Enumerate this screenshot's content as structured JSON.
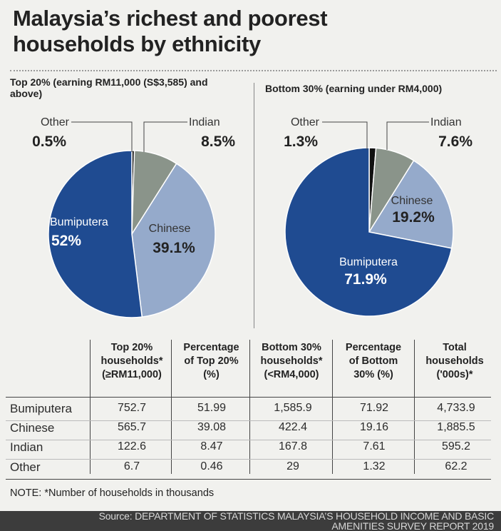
{
  "title": "Malaysia’s richest and poorest households by ethnicity",
  "colors": {
    "bumiputera": "#1f4b91",
    "chinese": "#95aacb",
    "indian": "#8a948a",
    "other": "#111111",
    "outline": "#ffffff"
  },
  "chart_data": [
    {
      "type": "pie",
      "title": "Top 20% (earning RM11,000 (S$3,585) and above)",
      "categories": [
        "Bumiputera",
        "Chinese",
        "Indian",
        "Other"
      ],
      "values": [
        52,
        39.1,
        8.5,
        0.5
      ],
      "labels": [
        "52%",
        "39.1%",
        "8.5%",
        "0.5%"
      ]
    },
    {
      "type": "pie",
      "title": "Bottom 30% (earning under RM4,000)",
      "categories": [
        "Bumiputera",
        "Chinese",
        "Indian",
        "Other"
      ],
      "values": [
        71.9,
        19.2,
        7.6,
        1.3
      ],
      "labels": [
        "71.9%",
        "19.2%",
        "7.6%",
        "1.3%"
      ]
    },
    {
      "type": "table",
      "headers": [
        "",
        "Top 20% households* (≥RM11,000)",
        "Percentage of Top 20% (%)",
        "Bottom 30% households* (<RM4,000)",
        "Percentage of Bottom 30% (%)",
        "Total households ('000s)*"
      ],
      "rows": [
        [
          "Bumiputera",
          "752.7",
          "51.99",
          "1,585.9",
          "71.92",
          "4,733.9"
        ],
        [
          "Chinese",
          "565.7",
          "39.08",
          "422.4",
          "19.16",
          "1,885.5"
        ],
        [
          "Indian",
          "122.6",
          "8.47",
          "167.8",
          "7.61",
          "595.2"
        ],
        [
          "Other",
          "6.7",
          "0.46",
          "29",
          "1.32",
          "62.2"
        ]
      ]
    }
  ],
  "table_header": {
    "c1": [
      "Top 20%",
      "households*",
      "(≥RM11,000)"
    ],
    "c2": [
      "Percentage",
      "of Top 20%",
      "(%)"
    ],
    "c3": [
      "Bottom 30%",
      "households*",
      "(<RM4,000)"
    ],
    "c4": [
      "Percentage",
      "of Bottom",
      "30% (%)"
    ],
    "c5": [
      "Total",
      "households",
      "('000s)*"
    ]
  },
  "note": "NOTE: *Number of households in thousands",
  "source": "Source: DEPARTMENT OF STATISTICS MALAYSIA’S HOUSEHOLD INCOME AND BASIC AMENITIES SURVEY REPORT 2019"
}
